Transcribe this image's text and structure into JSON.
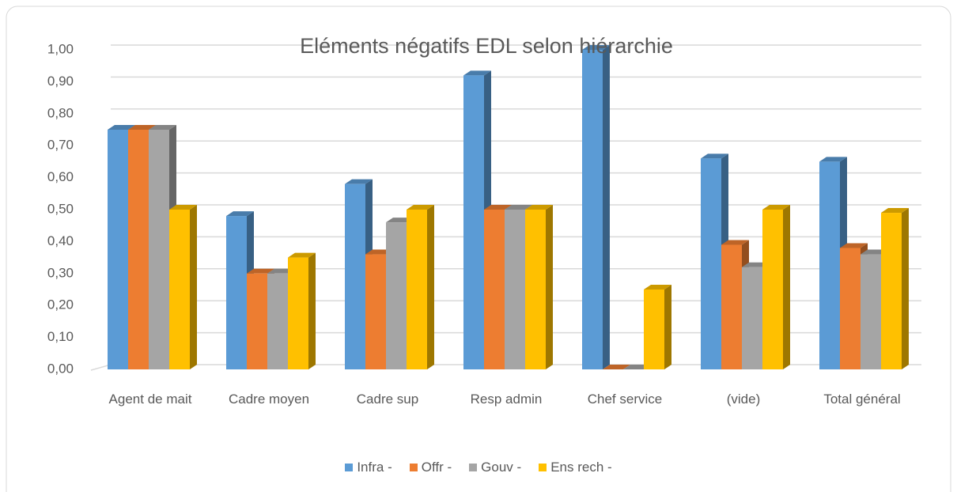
{
  "chart_data": {
    "type": "bar",
    "title": "Eléments négatifs EDL selon hiérarchie",
    "categories": [
      "Agent de mait",
      "Cadre moyen",
      "Cadre sup",
      "Resp admin",
      "Chef service",
      "(vide)",
      "Total général"
    ],
    "series": [
      {
        "name": "Infra -",
        "color": "#5b9bd5",
        "values": [
          0.75,
          0.48,
          0.58,
          0.92,
          1.0,
          0.66,
          0.65
        ]
      },
      {
        "name": "Offr -",
        "color": "#ed7d31",
        "values": [
          0.75,
          0.3,
          0.36,
          0.5,
          0.0,
          0.39,
          0.38
        ]
      },
      {
        "name": "Gouv -",
        "color": "#a5a5a5",
        "values": [
          0.75,
          0.3,
          0.46,
          0.5,
          0.0,
          0.32,
          0.36
        ]
      },
      {
        "name": "Ens rech -",
        "color": "#ffc000",
        "values": [
          0.5,
          0.35,
          0.5,
          0.5,
          0.25,
          0.5,
          0.49
        ]
      }
    ],
    "ylim": [
      0,
      1
    ],
    "yticks": [
      {
        "value": 0,
        "label": "0,00"
      },
      {
        "value": 0.1,
        "label": "0,10"
      },
      {
        "value": 0.2,
        "label": "0,20"
      },
      {
        "value": 0.3,
        "label": "0,30"
      },
      {
        "value": 0.4,
        "label": "0,40"
      },
      {
        "value": 0.5,
        "label": "0,50"
      },
      {
        "value": 0.6,
        "label": "0,60"
      },
      {
        "value": 0.7,
        "label": "0,70"
      },
      {
        "value": 0.8,
        "label": "0,80"
      },
      {
        "value": 0.9,
        "label": "0,90"
      },
      {
        "value": 1,
        "label": "1,00"
      }
    ],
    "grid": true,
    "legend": "bottom"
  }
}
